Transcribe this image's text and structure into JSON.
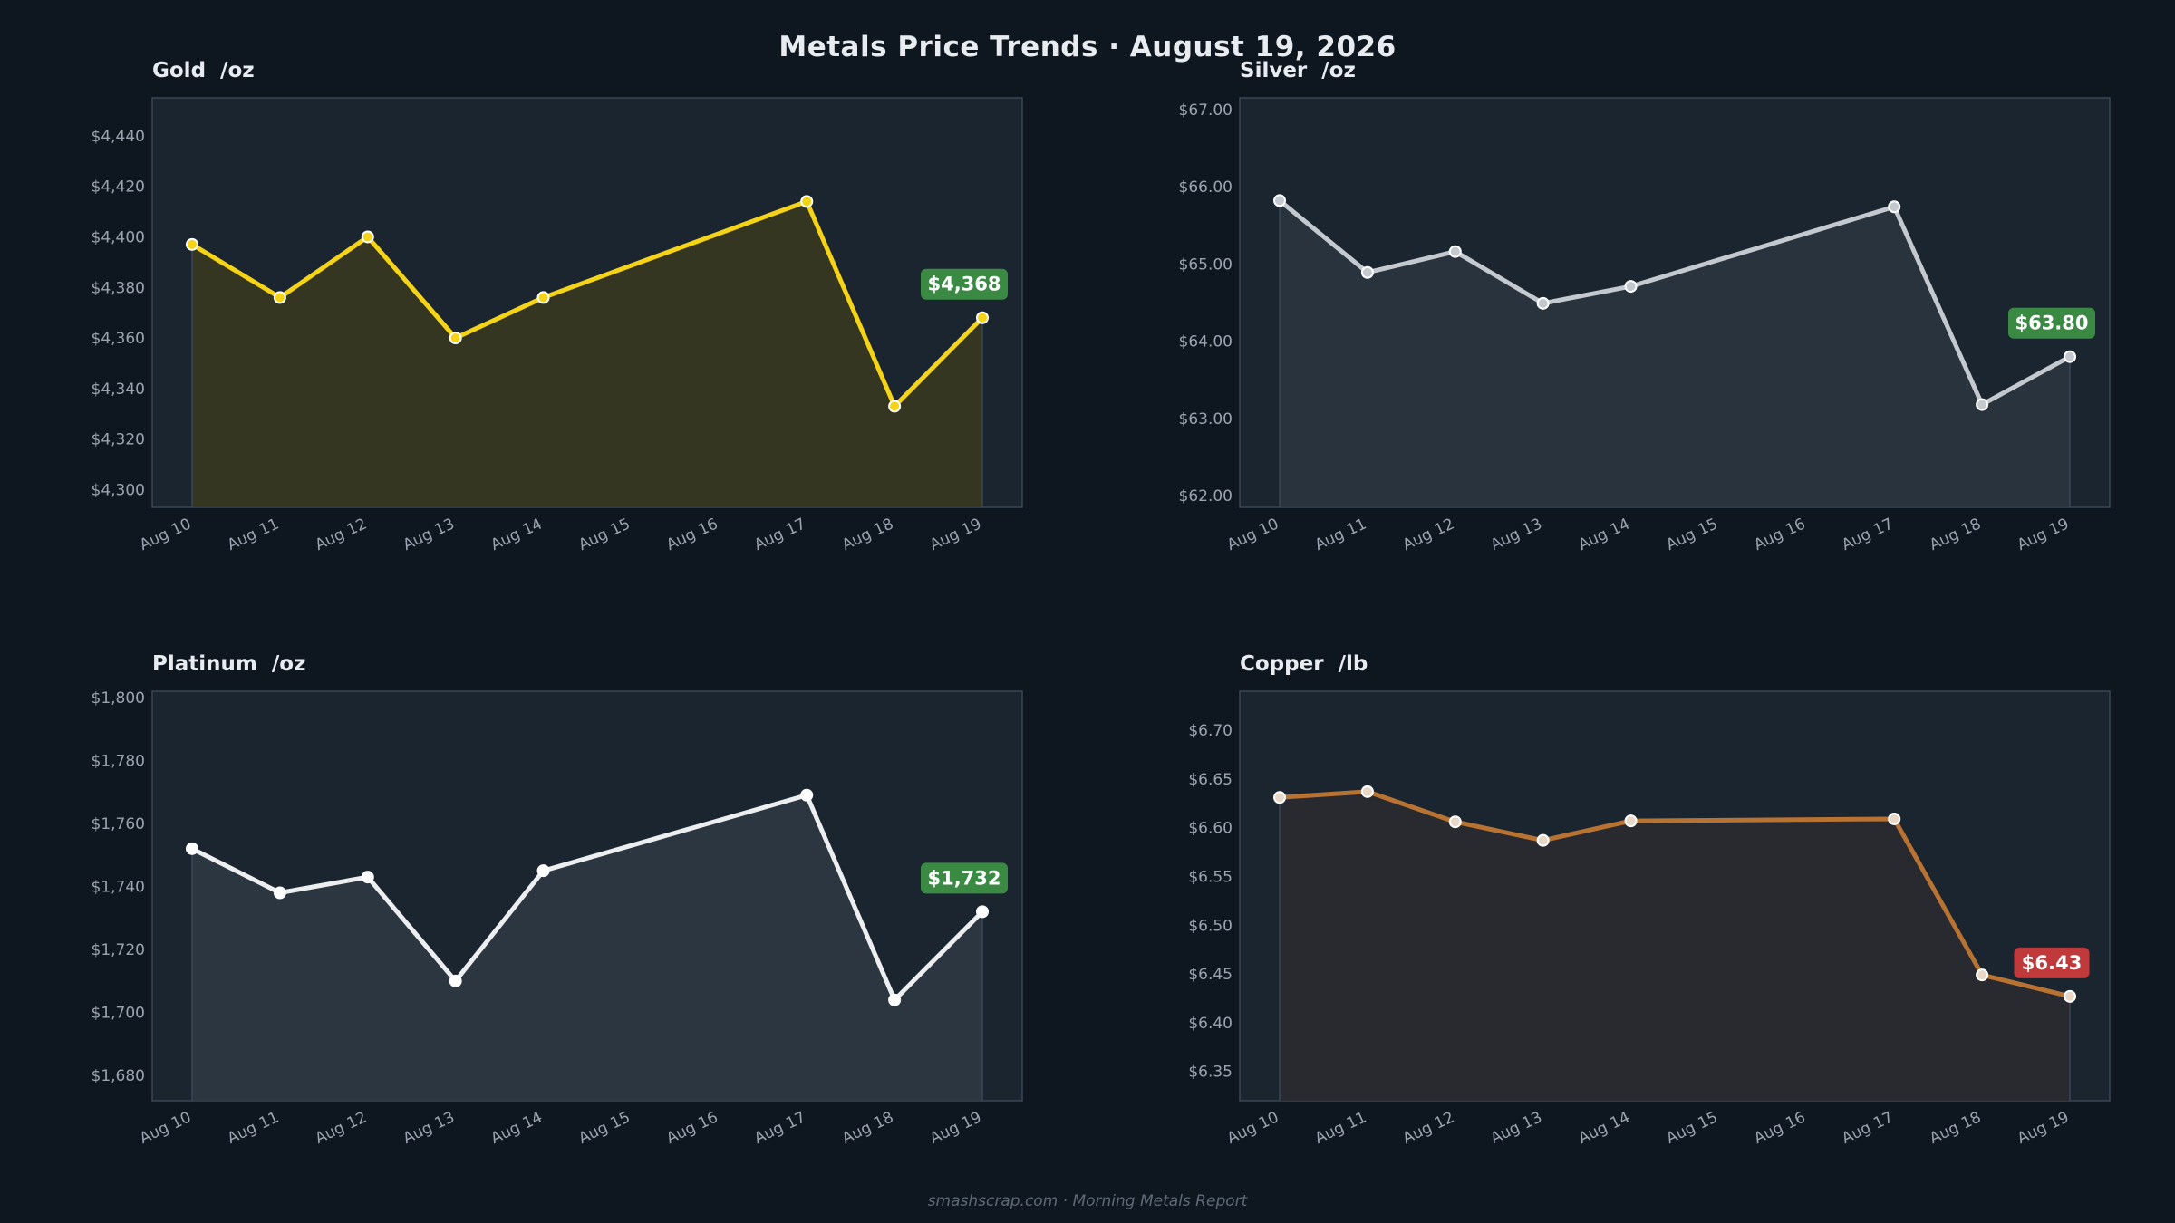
{
  "title": "Metals Price Trends  ·  August 19, 2026",
  "footer": "smashscrap.com  ·  Morning Metals Report",
  "colors": {
    "background": "#0e1620",
    "plot_bg": "#1b2530",
    "plot_border": "#3a4756",
    "tick_text": "#9aa4b0",
    "badge_up": "#3a8a44",
    "badge_down": "#c0393b"
  },
  "chart_data": [
    {
      "type": "line",
      "title": "Gold  /oz",
      "x": [
        "Aug 10",
        "Aug 11",
        "Aug 12",
        "Aug 13",
        "Aug 14",
        "Aug 15",
        "Aug 16",
        "Aug 17",
        "Aug 18",
        "Aug 19"
      ],
      "points": [
        {
          "x": "Aug 10",
          "y": 4397
        },
        {
          "x": "Aug 11",
          "y": 4376
        },
        {
          "x": "Aug 12",
          "y": 4400
        },
        {
          "x": "Aug 13",
          "y": 4360
        },
        {
          "x": "Aug 14",
          "y": 4376
        },
        {
          "x": "Aug 17",
          "y": 4414
        },
        {
          "x": "Aug 18",
          "y": 4333
        },
        {
          "x": "Aug 19",
          "y": 4368
        }
      ],
      "ylim": [
        4293,
        4455
      ],
      "yticks": [
        4300,
        4320,
        4340,
        4360,
        4380,
        4400,
        4420,
        4440
      ],
      "ytick_labels": [
        "$4,300",
        "$4,320",
        "$4,340",
        "$4,360",
        "$4,380",
        "$4,400",
        "$4,420",
        "$4,440"
      ],
      "last_label": "$4,368",
      "badge": "up",
      "line_color": "#f5d316",
      "fill_color": "#3a3a1e",
      "marker_fill": "#f5d316"
    },
    {
      "type": "line",
      "title": "Silver  /oz",
      "x": [
        "Aug 10",
        "Aug 11",
        "Aug 12",
        "Aug 13",
        "Aug 14",
        "Aug 15",
        "Aug 16",
        "Aug 17",
        "Aug 18",
        "Aug 19"
      ],
      "points": [
        {
          "x": "Aug 10",
          "y": 65.82
        },
        {
          "x": "Aug 11",
          "y": 64.89
        },
        {
          "x": "Aug 12",
          "y": 65.16
        },
        {
          "x": "Aug 13",
          "y": 64.49
        },
        {
          "x": "Aug 14",
          "y": 64.71
        },
        {
          "x": "Aug 17",
          "y": 65.74
        },
        {
          "x": "Aug 18",
          "y": 63.18
        },
        {
          "x": "Aug 19",
          "y": 63.8
        }
      ],
      "ylim": [
        61.85,
        67.15
      ],
      "yticks": [
        62,
        63,
        64,
        65,
        66,
        67
      ],
      "ytick_labels": [
        "$62.00",
        "$63.00",
        "$64.00",
        "$65.00",
        "$66.00",
        "$67.00"
      ],
      "last_label": "$63.80",
      "badge": "up",
      "line_color": "#c4c9cf",
      "fill_color": "#2c3640",
      "marker_fill": "#c4c9cf"
    },
    {
      "type": "line",
      "title": "Platinum  /oz",
      "x": [
        "Aug 10",
        "Aug 11",
        "Aug 12",
        "Aug 13",
        "Aug 14",
        "Aug 15",
        "Aug 16",
        "Aug 17",
        "Aug 18",
        "Aug 19"
      ],
      "points": [
        {
          "x": "Aug 10",
          "y": 1752
        },
        {
          "x": "Aug 11",
          "y": 1738
        },
        {
          "x": "Aug 12",
          "y": 1743
        },
        {
          "x": "Aug 13",
          "y": 1710
        },
        {
          "x": "Aug 14",
          "y": 1745
        },
        {
          "x": "Aug 17",
          "y": 1769
        },
        {
          "x": "Aug 18",
          "y": 1704
        },
        {
          "x": "Aug 19",
          "y": 1732
        }
      ],
      "ylim": [
        1672,
        1802
      ],
      "yticks": [
        1680,
        1700,
        1720,
        1740,
        1760,
        1780,
        1800
      ],
      "ytick_labels": [
        "$1,680",
        "$1,700",
        "$1,720",
        "$1,740",
        "$1,760",
        "$1,780",
        "$1,800"
      ],
      "last_label": "$1,732",
      "badge": "up",
      "line_color": "#eceef0",
      "fill_color": "#2f3a43",
      "marker_fill": "#ffffff"
    },
    {
      "type": "line",
      "title": "Copper  /lb",
      "x": [
        "Aug 10",
        "Aug 11",
        "Aug 12",
        "Aug 13",
        "Aug 14",
        "Aug 15",
        "Aug 16",
        "Aug 17",
        "Aug 18",
        "Aug 19"
      ],
      "points": [
        {
          "x": "Aug 10",
          "y": 6.631
        },
        {
          "x": "Aug 11",
          "y": 6.637
        },
        {
          "x": "Aug 12",
          "y": 6.606
        },
        {
          "x": "Aug 13",
          "y": 6.587
        },
        {
          "x": "Aug 14",
          "y": 6.607
        },
        {
          "x": "Aug 17",
          "y": 6.609
        },
        {
          "x": "Aug 18",
          "y": 6.449
        },
        {
          "x": "Aug 19",
          "y": 6.427
        }
      ],
      "ylim": [
        6.32,
        6.74
      ],
      "yticks": [
        6.35,
        6.4,
        6.45,
        6.5,
        6.55,
        6.6,
        6.65,
        6.7
      ],
      "ytick_labels": [
        "$6.35",
        "$6.40",
        "$6.45",
        "$6.50",
        "$6.55",
        "$6.60",
        "$6.65",
        "$6.70"
      ],
      "last_label": "$6.43",
      "badge": "down",
      "line_color": "#b87333",
      "fill_color": "#2c2c2f",
      "marker_fill": "#e8d8c8"
    }
  ]
}
